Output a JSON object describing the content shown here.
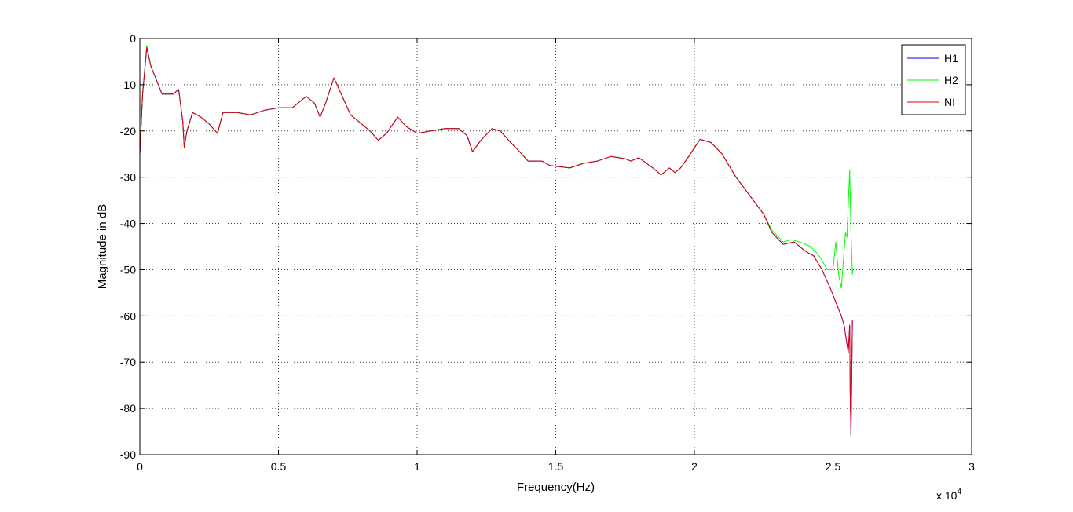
{
  "chart_data": {
    "type": "line",
    "title": "",
    "xlabel": "Frequency(Hz)",
    "ylabel": "Magnitude in dB",
    "x_exponent_label": "x 10",
    "x_exponent_power": "4",
    "xlim": [
      0,
      30000
    ],
    "ylim": [
      -90,
      0
    ],
    "x_ticks": [
      0,
      5000,
      10000,
      15000,
      20000,
      25000,
      30000
    ],
    "x_tick_labels": [
      "0",
      "0.5",
      "1",
      "1.5",
      "2",
      "2.5",
      "3"
    ],
    "y_ticks": [
      0,
      -10,
      -20,
      -30,
      -40,
      -50,
      -60,
      -70,
      -80,
      -90
    ],
    "y_tick_labels": [
      "0",
      "-10",
      "-20",
      "-30",
      "-40",
      "-50",
      "-60",
      "-70",
      "-80",
      "-90"
    ],
    "grid": true,
    "legend_position": "top-right",
    "series": [
      {
        "name": "H1",
        "color": "#0000ff",
        "points": [
          [
            0,
            -25
          ],
          [
            100,
            -12
          ],
          [
            250,
            -2
          ],
          [
            400,
            -6
          ],
          [
            600,
            -9
          ],
          [
            800,
            -12
          ],
          [
            1000,
            -12
          ],
          [
            1200,
            -12
          ],
          [
            1400,
            -11
          ],
          [
            1550,
            -18
          ],
          [
            1600,
            -23.5
          ],
          [
            1700,
            -20
          ],
          [
            1900,
            -16
          ],
          [
            2200,
            -17
          ],
          [
            2500,
            -18.5
          ],
          [
            2800,
            -20.5
          ],
          [
            3000,
            -16
          ],
          [
            3500,
            -16
          ],
          [
            4000,
            -16.5
          ],
          [
            4500,
            -15.5
          ],
          [
            5000,
            -15
          ],
          [
            5500,
            -15
          ],
          [
            6000,
            -12.5
          ],
          [
            6300,
            -14
          ],
          [
            6500,
            -17
          ],
          [
            6700,
            -14
          ],
          [
            7000,
            -8.5
          ],
          [
            7300,
            -12.5
          ],
          [
            7600,
            -16.5
          ],
          [
            8000,
            -18.5
          ],
          [
            8300,
            -20
          ],
          [
            8600,
            -22
          ],
          [
            8900,
            -20.5
          ],
          [
            9300,
            -17
          ],
          [
            9600,
            -19
          ],
          [
            10000,
            -20.5
          ],
          [
            10500,
            -20
          ],
          [
            11000,
            -19.5
          ],
          [
            11500,
            -19.5
          ],
          [
            11800,
            -21
          ],
          [
            12000,
            -24.5
          ],
          [
            12300,
            -22
          ],
          [
            12700,
            -19.5
          ],
          [
            13000,
            -20
          ],
          [
            13300,
            -22
          ],
          [
            13700,
            -24.5
          ],
          [
            14000,
            -26.5
          ],
          [
            14500,
            -26.5
          ],
          [
            14800,
            -27.5
          ],
          [
            15500,
            -28
          ],
          [
            16000,
            -27
          ],
          [
            16500,
            -26.5
          ],
          [
            17000,
            -25.5
          ],
          [
            17500,
            -26
          ],
          [
            17700,
            -26.5
          ],
          [
            18000,
            -25.8
          ],
          [
            18500,
            -28
          ],
          [
            18800,
            -29.5
          ],
          [
            19100,
            -28
          ],
          [
            19300,
            -29
          ],
          [
            19500,
            -28
          ],
          [
            19800,
            -25.5
          ],
          [
            20200,
            -21.8
          ],
          [
            20600,
            -22.5
          ],
          [
            21000,
            -25
          ],
          [
            21500,
            -30
          ],
          [
            22000,
            -34
          ],
          [
            22500,
            -38
          ],
          [
            22800,
            -42
          ],
          [
            23200,
            -44.5
          ],
          [
            23600,
            -44
          ],
          [
            24000,
            -46
          ],
          [
            24300,
            -47
          ],
          [
            24600,
            -50
          ],
          [
            24900,
            -54
          ],
          [
            25100,
            -57
          ],
          [
            25300,
            -60
          ],
          [
            25400,
            -62
          ],
          [
            25500,
            -66
          ],
          [
            25550,
            -68
          ],
          [
            25600,
            -62
          ],
          [
            25620,
            -77
          ],
          [
            25650,
            -86
          ],
          [
            25700,
            -61
          ]
        ]
      },
      {
        "name": "H2",
        "color": "#00ff00",
        "points": [
          [
            0,
            -25
          ],
          [
            100,
            -12
          ],
          [
            250,
            -1.5
          ],
          [
            400,
            -6
          ],
          [
            600,
            -9
          ],
          [
            800,
            -12
          ],
          [
            1000,
            -12
          ],
          [
            1200,
            -12
          ],
          [
            1400,
            -11
          ],
          [
            1550,
            -18
          ],
          [
            1600,
            -23.5
          ],
          [
            1700,
            -20
          ],
          [
            1900,
            -16
          ],
          [
            2200,
            -17
          ],
          [
            2500,
            -18.5
          ],
          [
            2800,
            -20.5
          ],
          [
            3000,
            -16
          ],
          [
            3500,
            -16
          ],
          [
            4000,
            -16.5
          ],
          [
            4500,
            -15.5
          ],
          [
            5000,
            -15
          ],
          [
            5500,
            -15
          ],
          [
            6000,
            -12.5
          ],
          [
            6300,
            -14
          ],
          [
            6500,
            -17
          ],
          [
            6700,
            -14
          ],
          [
            7000,
            -8.5
          ],
          [
            7300,
            -12.5
          ],
          [
            7600,
            -16.5
          ],
          [
            8000,
            -18.5
          ],
          [
            8300,
            -20
          ],
          [
            8600,
            -22
          ],
          [
            8900,
            -20.5
          ],
          [
            9300,
            -17
          ],
          [
            9600,
            -19
          ],
          [
            10000,
            -20.5
          ],
          [
            10500,
            -20
          ],
          [
            11000,
            -19.5
          ],
          [
            11500,
            -19.5
          ],
          [
            11800,
            -21
          ],
          [
            12000,
            -24.5
          ],
          [
            12300,
            -22
          ],
          [
            12700,
            -19.5
          ],
          [
            13000,
            -20
          ],
          [
            13300,
            -22
          ],
          [
            13700,
            -24.5
          ],
          [
            14000,
            -26.5
          ],
          [
            14500,
            -26.5
          ],
          [
            14800,
            -27.5
          ],
          [
            15500,
            -28
          ],
          [
            16000,
            -27
          ],
          [
            16500,
            -26.5
          ],
          [
            17000,
            -25.5
          ],
          [
            17500,
            -26
          ],
          [
            17700,
            -26.5
          ],
          [
            18000,
            -25.8
          ],
          [
            18500,
            -28
          ],
          [
            18800,
            -29.5
          ],
          [
            19100,
            -28
          ],
          [
            19300,
            -29
          ],
          [
            19500,
            -28
          ],
          [
            19800,
            -25.5
          ],
          [
            20200,
            -21.8
          ],
          [
            20600,
            -22.5
          ],
          [
            21000,
            -25
          ],
          [
            21500,
            -30
          ],
          [
            22000,
            -34
          ],
          [
            22500,
            -38
          ],
          [
            22800,
            -41.5
          ],
          [
            23200,
            -44
          ],
          [
            23500,
            -43.5
          ],
          [
            23800,
            -44
          ],
          [
            24200,
            -45
          ],
          [
            24500,
            -47
          ],
          [
            24800,
            -50
          ],
          [
            25000,
            -50
          ],
          [
            25100,
            -44
          ],
          [
            25200,
            -51
          ],
          [
            25300,
            -54
          ],
          [
            25350,
            -50
          ],
          [
            25400,
            -46
          ],
          [
            25450,
            -42
          ],
          [
            25500,
            -43
          ],
          [
            25550,
            -36
          ],
          [
            25600,
            -28.5
          ],
          [
            25650,
            -42
          ],
          [
            25700,
            -51
          ],
          [
            25720,
            -50
          ]
        ]
      },
      {
        "name": "NI",
        "color": "#e00000",
        "points": [
          [
            0,
            -25
          ],
          [
            100,
            -12
          ],
          [
            250,
            -2
          ],
          [
            400,
            -6
          ],
          [
            600,
            -9
          ],
          [
            800,
            -12
          ],
          [
            1000,
            -12
          ],
          [
            1200,
            -12
          ],
          [
            1400,
            -11
          ],
          [
            1550,
            -18
          ],
          [
            1600,
            -23.5
          ],
          [
            1700,
            -20
          ],
          [
            1900,
            -16
          ],
          [
            2200,
            -17
          ],
          [
            2500,
            -18.5
          ],
          [
            2800,
            -20.5
          ],
          [
            3000,
            -16
          ],
          [
            3500,
            -16
          ],
          [
            4000,
            -16.5
          ],
          [
            4500,
            -15.5
          ],
          [
            5000,
            -15
          ],
          [
            5500,
            -15
          ],
          [
            6000,
            -12.5
          ],
          [
            6300,
            -14
          ],
          [
            6500,
            -17
          ],
          [
            6700,
            -14
          ],
          [
            7000,
            -8.5
          ],
          [
            7300,
            -12.5
          ],
          [
            7600,
            -16.5
          ],
          [
            8000,
            -18.5
          ],
          [
            8300,
            -20
          ],
          [
            8600,
            -22
          ],
          [
            8900,
            -20.5
          ],
          [
            9300,
            -17
          ],
          [
            9600,
            -19
          ],
          [
            10000,
            -20.5
          ],
          [
            10500,
            -20
          ],
          [
            11000,
            -19.5
          ],
          [
            11500,
            -19.5
          ],
          [
            11800,
            -21
          ],
          [
            12000,
            -24.5
          ],
          [
            12300,
            -22
          ],
          [
            12700,
            -19.5
          ],
          [
            13000,
            -20
          ],
          [
            13300,
            -22
          ],
          [
            13700,
            -24.5
          ],
          [
            14000,
            -26.5
          ],
          [
            14500,
            -26.5
          ],
          [
            14800,
            -27.5
          ],
          [
            15500,
            -28
          ],
          [
            16000,
            -27
          ],
          [
            16500,
            -26.5
          ],
          [
            17000,
            -25.5
          ],
          [
            17500,
            -26
          ],
          [
            17700,
            -26.5
          ],
          [
            18000,
            -25.8
          ],
          [
            18500,
            -28
          ],
          [
            18800,
            -29.5
          ],
          [
            19100,
            -28
          ],
          [
            19300,
            -29
          ],
          [
            19500,
            -28
          ],
          [
            19800,
            -25.5
          ],
          [
            20200,
            -21.8
          ],
          [
            20600,
            -22.5
          ],
          [
            21000,
            -25
          ],
          [
            21500,
            -30
          ],
          [
            22000,
            -34
          ],
          [
            22500,
            -38
          ],
          [
            22800,
            -42
          ],
          [
            23200,
            -44.5
          ],
          [
            23600,
            -44
          ],
          [
            24000,
            -46
          ],
          [
            24300,
            -47
          ],
          [
            24600,
            -50
          ],
          [
            24900,
            -54
          ],
          [
            25100,
            -57
          ],
          [
            25300,
            -60
          ],
          [
            25400,
            -62
          ],
          [
            25500,
            -66
          ],
          [
            25550,
            -68
          ],
          [
            25600,
            -62
          ],
          [
            25620,
            -77
          ],
          [
            25650,
            -86
          ],
          [
            25700,
            -61
          ]
        ]
      }
    ]
  }
}
